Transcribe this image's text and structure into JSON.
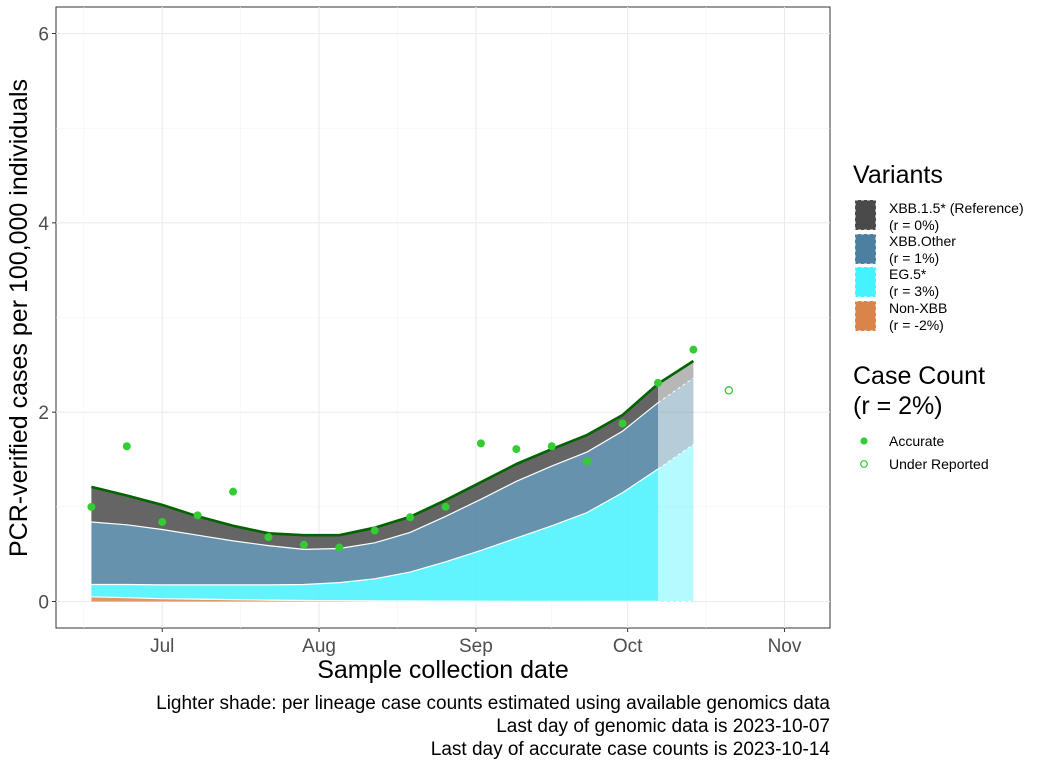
{
  "chart_data": {
    "type": "area",
    "xlabel": "Sample collection date",
    "ylabel": "PCR-verified cases per 100,000 individuals",
    "x_range": [
      "2023-06-10",
      "2023-11-10"
    ],
    "ylim": [
      -0.28,
      6.28
    ],
    "y_ticks": [
      0,
      2,
      4,
      6
    ],
    "x_ticks": [
      {
        "date": "2023-07-01",
        "label": "Jul"
      },
      {
        "date": "2023-08-01",
        "label": "Aug"
      },
      {
        "date": "2023-09-01",
        "label": "Sep"
      },
      {
        "date": "2023-10-01",
        "label": "Oct"
      },
      {
        "date": "2023-11-01",
        "label": "Nov"
      }
    ],
    "grid": true,
    "legend_position": "right",
    "genomic_cutoff_date": "2023-10-07",
    "dates": [
      "2023-06-17",
      "2023-06-24",
      "2023-07-01",
      "2023-07-08",
      "2023-07-15",
      "2023-07-22",
      "2023-07-29",
      "2023-08-05",
      "2023-08-12",
      "2023-08-19",
      "2023-08-26",
      "2023-09-02",
      "2023-09-09",
      "2023-09-16",
      "2023-09-23",
      "2023-09-30",
      "2023-10-07",
      "2023-10-14"
    ],
    "stack_order_bottom_to_top": [
      "Non-XBB",
      "EG.5*",
      "XBB.Other",
      "XBB.1.5* (Reference)"
    ],
    "series": [
      {
        "name": "Non-XBB",
        "rate": "(r = -2%)",
        "color": "#d9844a",
        "values": [
          0.05,
          0.04,
          0.03,
          0.025,
          0.02,
          0.015,
          0.01,
          0.008,
          0.006,
          0.005,
          0.004,
          0.003,
          0.002,
          0.002,
          0.001,
          0.001,
          0.001,
          0.001
        ]
      },
      {
        "name": "EG.5*",
        "rate": "(r = 3%)",
        "color": "#45f2ff",
        "values": [
          0.13,
          0.14,
          0.145,
          0.15,
          0.155,
          0.16,
          0.17,
          0.192,
          0.234,
          0.305,
          0.415,
          0.537,
          0.668,
          0.798,
          0.939,
          1.149,
          1.399,
          1.659
        ]
      },
      {
        "name": "XBB.Other",
        "rate": "(r = 1%)",
        "color": "#4c7fa0",
        "values": [
          0.66,
          0.63,
          0.585,
          0.525,
          0.465,
          0.415,
          0.37,
          0.36,
          0.38,
          0.42,
          0.48,
          0.54,
          0.6,
          0.63,
          0.64,
          0.65,
          0.7,
          0.7
        ]
      },
      {
        "name": "XBB.1.5* (Reference)",
        "rate": "(r = 0%)",
        "color": "#4a4a4a",
        "values": [
          0.37,
          0.31,
          0.26,
          0.2,
          0.16,
          0.13,
          0.15,
          0.14,
          0.16,
          0.165,
          0.171,
          0.18,
          0.182,
          0.18,
          0.18,
          0.17,
          0.2,
          0.18
        ]
      }
    ],
    "total_line": {
      "color": "#006400"
    },
    "case_counts": {
      "title_line1": "Case Count",
      "title_line2": "(r = 2%)",
      "accurate_label": "Accurate",
      "under_reported_label": "Under Reported",
      "color": "#33cc33",
      "accurate": [
        {
          "date": "2023-06-17",
          "value": 1.0
        },
        {
          "date": "2023-06-24",
          "value": 1.64
        },
        {
          "date": "2023-07-01",
          "value": 0.84
        },
        {
          "date": "2023-07-08",
          "value": 0.91
        },
        {
          "date": "2023-07-15",
          "value": 1.16
        },
        {
          "date": "2023-07-22",
          "value": 0.68
        },
        {
          "date": "2023-07-29",
          "value": 0.6
        },
        {
          "date": "2023-08-05",
          "value": 0.57
        },
        {
          "date": "2023-08-12",
          "value": 0.75
        },
        {
          "date": "2023-08-19",
          "value": 0.89
        },
        {
          "date": "2023-08-26",
          "value": 1.0
        },
        {
          "date": "2023-09-02",
          "value": 1.67
        },
        {
          "date": "2023-09-09",
          "value": 1.61
        },
        {
          "date": "2023-09-16",
          "value": 1.64
        },
        {
          "date": "2023-09-23",
          "value": 1.48
        },
        {
          "date": "2023-09-30",
          "value": 1.88
        },
        {
          "date": "2023-10-07",
          "value": 2.31
        },
        {
          "date": "2023-10-14",
          "value": 2.66
        }
      ],
      "under_reported": [
        {
          "date": "2023-10-21",
          "value": 2.23
        }
      ]
    }
  },
  "legend": {
    "variants_title": "Variants",
    "cases_title_line1": "Case Count",
    "cases_title_line2": "(r = 2%)",
    "accurate_label": "Accurate",
    "under_reported_label": "Under Reported",
    "items": [
      {
        "name": "XBB.1.5* (Reference)",
        "rate": "(r = 0%)",
        "color": "#4a4a4a"
      },
      {
        "name": "XBB.Other",
        "rate": "(r = 1%)",
        "color": "#4c7fa0"
      },
      {
        "name": "EG.5*",
        "rate": "(r = 3%)",
        "color": "#45f2ff"
      },
      {
        "name": "Non-XBB",
        "rate": "(r = -2%)",
        "color": "#d9844a"
      }
    ]
  },
  "caption": {
    "line1": "Lighter shade: per lineage case counts estimated using available genomics data",
    "line2": "Last day of genomic data is 2023-10-07",
    "line3": "Last day of accurate case counts is 2023-10-14"
  }
}
